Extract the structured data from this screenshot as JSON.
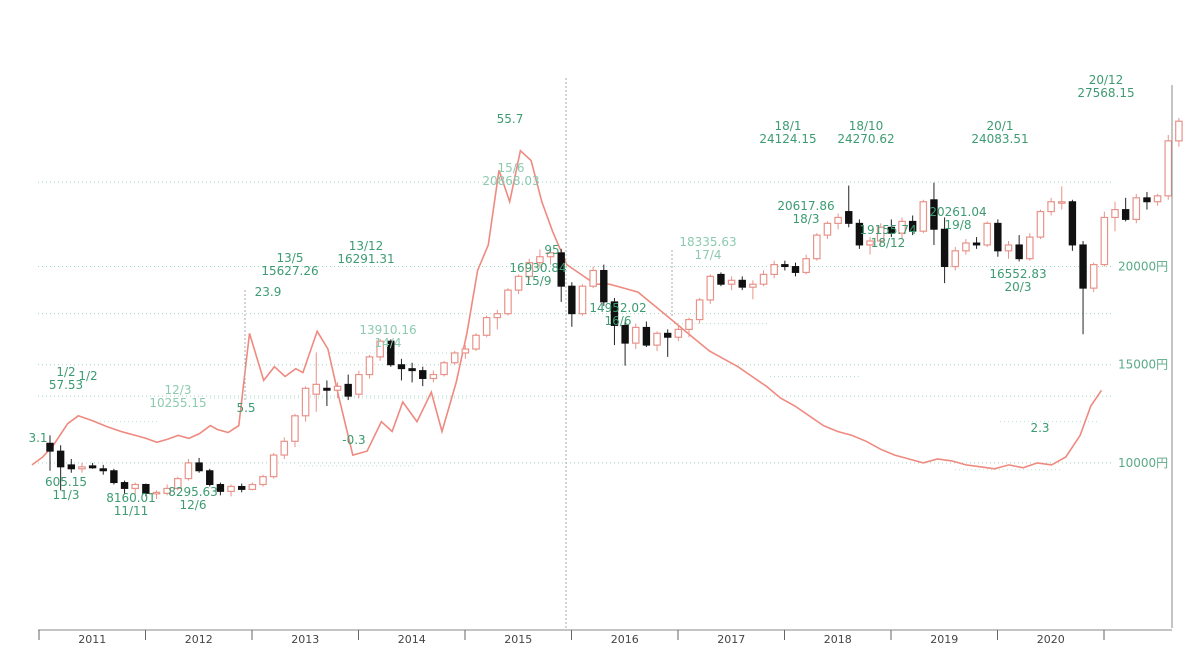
{
  "chart_data": {
    "type": "candlestick",
    "price_axis": {
      "ticks": [
        {
          "value": 10000,
          "label": "10000円"
        },
        {
          "value": 15000,
          "label": "15000円"
        },
        {
          "value": 20000,
          "label": "20000円"
        }
      ],
      "ylim": [
        2000,
        29500
      ]
    },
    "grid": true,
    "years": [
      "2011",
      "2012",
      "2013",
      "2014",
      "2015",
      "2016",
      "2017",
      "2018",
      "2019",
      "2020"
    ],
    "candles": [
      {
        "t": 0.0,
        "o": 11000,
        "h": 11400,
        "l": 9600,
        "c": 10600
      },
      {
        "t": 0.1,
        "o": 10600,
        "h": 10900,
        "l": 8600,
        "c": 9800
      },
      {
        "t": 0.2,
        "o": 9900,
        "h": 10200,
        "l": 9500,
        "c": 9700
      },
      {
        "t": 0.3,
        "o": 9700,
        "h": 10000,
        "l": 9500,
        "c": 9800
      },
      {
        "t": 0.4,
        "o": 9850,
        "h": 10000,
        "l": 9700,
        "c": 9750
      },
      {
        "t": 0.5,
        "o": 9700,
        "h": 9900,
        "l": 9400,
        "c": 9600
      },
      {
        "t": 0.6,
        "o": 9600,
        "h": 9700,
        "l": 8900,
        "c": 9000
      },
      {
        "t": 0.7,
        "o": 9000,
        "h": 9100,
        "l": 8400,
        "c": 8700
      },
      {
        "t": 0.8,
        "o": 8700,
        "h": 9000,
        "l": 8400,
        "c": 8900
      },
      {
        "t": 0.9,
        "o": 8900,
        "h": 8950,
        "l": 8300,
        "c": 8450
      },
      {
        "t": 1.0,
        "o": 8450,
        "h": 8600,
        "l": 8160,
        "c": 8500
      },
      {
        "t": 1.1,
        "o": 8450,
        "h": 8900,
        "l": 8350,
        "c": 8700
      },
      {
        "t": 1.2,
        "o": 8700,
        "h": 9300,
        "l": 8600,
        "c": 9200
      },
      {
        "t": 1.3,
        "o": 9200,
        "h": 10200,
        "l": 9100,
        "c": 10000
      },
      {
        "t": 1.4,
        "o": 10000,
        "h": 10255,
        "l": 9500,
        "c": 9600
      },
      {
        "t": 1.5,
        "o": 9600,
        "h": 9700,
        "l": 8800,
        "c": 8900
      },
      {
        "t": 1.6,
        "o": 8900,
        "h": 9000,
        "l": 8350,
        "c": 8550
      },
      {
        "t": 1.7,
        "o": 8550,
        "h": 8900,
        "l": 8295,
        "c": 8800
      },
      {
        "t": 1.8,
        "o": 8800,
        "h": 8950,
        "l": 8500,
        "c": 8650
      },
      {
        "t": 1.9,
        "o": 8650,
        "h": 9000,
        "l": 8600,
        "c": 8900
      },
      {
        "t": 2.0,
        "o": 8900,
        "h": 9400,
        "l": 8800,
        "c": 9300
      },
      {
        "t": 2.1,
        "o": 9300,
        "h": 10500,
        "l": 9200,
        "c": 10400
      },
      {
        "t": 2.2,
        "o": 10400,
        "h": 11300,
        "l": 10200,
        "c": 11100
      },
      {
        "t": 2.3,
        "o": 11100,
        "h": 12500,
        "l": 10800,
        "c": 12400
      },
      {
        "t": 2.4,
        "o": 12400,
        "h": 13900,
        "l": 12100,
        "c": 13800
      },
      {
        "t": 2.5,
        "o": 13500,
        "h": 15627,
        "l": 12600,
        "c": 14000
      },
      {
        "t": 2.6,
        "o": 13800,
        "h": 14200,
        "l": 12900,
        "c": 13700
      },
      {
        "t": 2.7,
        "o": 13700,
        "h": 14100,
        "l": 13300,
        "c": 13900
      },
      {
        "t": 2.8,
        "o": 14000,
        "h": 14500,
        "l": 13200,
        "c": 13400
      },
      {
        "t": 2.9,
        "o": 13500,
        "h": 14700,
        "l": 13300,
        "c": 14500
      },
      {
        "t": 3.0,
        "o": 14500,
        "h": 15500,
        "l": 14300,
        "c": 15400
      },
      {
        "t": 3.1,
        "o": 15400,
        "h": 16320,
        "l": 15200,
        "c": 16200
      },
      {
        "t": 3.2,
        "o": 16200,
        "h": 16291,
        "l": 14900,
        "c": 15000
      },
      {
        "t": 3.3,
        "o": 15000,
        "h": 15300,
        "l": 14200,
        "c": 14800
      },
      {
        "t": 3.4,
        "o": 14800,
        "h": 15100,
        "l": 14100,
        "c": 14700
      },
      {
        "t": 3.5,
        "o": 14700,
        "h": 14900,
        "l": 13910,
        "c": 14300
      },
      {
        "t": 3.6,
        "o": 14300,
        "h": 14700,
        "l": 14100,
        "c": 14500
      },
      {
        "t": 3.7,
        "o": 14500,
        "h": 15200,
        "l": 14400,
        "c": 15100
      },
      {
        "t": 3.8,
        "o": 15100,
        "h": 15700,
        "l": 15000,
        "c": 15600
      },
      {
        "t": 3.9,
        "o": 15600,
        "h": 16000,
        "l": 15300,
        "c": 15800
      },
      {
        "t": 4.0,
        "o": 15800,
        "h": 16600,
        "l": 15700,
        "c": 16500
      },
      {
        "t": 4.1,
        "o": 16500,
        "h": 17500,
        "l": 16400,
        "c": 17400
      },
      {
        "t": 4.2,
        "o": 17400,
        "h": 17800,
        "l": 16800,
        "c": 17600
      },
      {
        "t": 4.3,
        "o": 17600,
        "h": 18900,
        "l": 17500,
        "c": 18800
      },
      {
        "t": 4.4,
        "o": 18800,
        "h": 19600,
        "l": 18600,
        "c": 19500
      },
      {
        "t": 4.5,
        "o": 19500,
        "h": 20400,
        "l": 19300,
        "c": 20200
      },
      {
        "t": 4.6,
        "o": 20200,
        "h": 20868,
        "l": 19900,
        "c": 20500
      },
      {
        "t": 4.7,
        "o": 20500,
        "h": 20900,
        "l": 20100,
        "c": 20700
      },
      {
        "t": 4.8,
        "o": 20700,
        "h": 20900,
        "l": 18200,
        "c": 19000
      },
      {
        "t": 4.9,
        "o": 19000,
        "h": 19200,
        "l": 16931,
        "c": 17600
      },
      {
        "t": 5.0,
        "o": 17600,
        "h": 19100,
        "l": 17500,
        "c": 19000
      },
      {
        "t": 5.1,
        "o": 19000,
        "h": 20000,
        "l": 18900,
        "c": 19800
      },
      {
        "t": 5.2,
        "o": 19800,
        "h": 20100,
        "l": 18000,
        "c": 18200
      },
      {
        "t": 5.3,
        "o": 18200,
        "h": 18400,
        "l": 16000,
        "c": 17000
      },
      {
        "t": 5.4,
        "o": 17000,
        "h": 17200,
        "l": 14952,
        "c": 16100
      },
      {
        "t": 5.5,
        "o": 16100,
        "h": 17100,
        "l": 15800,
        "c": 16900
      },
      {
        "t": 5.6,
        "o": 16900,
        "h": 17200,
        "l": 15900,
        "c": 16000
      },
      {
        "t": 5.7,
        "o": 16000,
        "h": 16700,
        "l": 15700,
        "c": 16600
      },
      {
        "t": 5.8,
        "o": 16600,
        "h": 16800,
        "l": 15400,
        "c": 16400
      },
      {
        "t": 5.9,
        "o": 16400,
        "h": 17000,
        "l": 16200,
        "c": 16800
      },
      {
        "t": 6.0,
        "o": 16800,
        "h": 17400,
        "l": 16400,
        "c": 17300
      },
      {
        "t": 6.1,
        "o": 17300,
        "h": 18400,
        "l": 17100,
        "c": 18300
      },
      {
        "t": 6.2,
        "o": 18300,
        "h": 19600,
        "l": 18100,
        "c": 19500
      },
      {
        "t": 6.3,
        "o": 19600,
        "h": 19700,
        "l": 19000,
        "c": 19100
      },
      {
        "t": 6.4,
        "o": 19100,
        "h": 19500,
        "l": 18800,
        "c": 19300
      },
      {
        "t": 6.5,
        "o": 19300,
        "h": 19500,
        "l": 18800,
        "c": 18950
      },
      {
        "t": 6.6,
        "o": 18950,
        "h": 19300,
        "l": 18335,
        "c": 19100
      },
      {
        "t": 6.7,
        "o": 19100,
        "h": 19800,
        "l": 19000,
        "c": 19600
      },
      {
        "t": 6.8,
        "o": 19600,
        "h": 20300,
        "l": 19400,
        "c": 20100
      },
      {
        "t": 6.9,
        "o": 20100,
        "h": 20300,
        "l": 19800,
        "c": 20000
      },
      {
        "t": 7.0,
        "o": 20000,
        "h": 20200,
        "l": 19500,
        "c": 19700
      },
      {
        "t": 7.1,
        "o": 19700,
        "h": 20600,
        "l": 19600,
        "c": 20400
      },
      {
        "t": 7.2,
        "o": 20400,
        "h": 21700,
        "l": 20300,
        "c": 21600
      },
      {
        "t": 7.3,
        "o": 21600,
        "h": 22300,
        "l": 21400,
        "c": 22200
      },
      {
        "t": 7.4,
        "o": 22200,
        "h": 22700,
        "l": 21900,
        "c": 22500
      },
      {
        "t": 7.5,
        "o": 22800,
        "h": 24124,
        "l": 22000,
        "c": 22200
      },
      {
        "t": 7.6,
        "o": 22200,
        "h": 22400,
        "l": 20900,
        "c": 21100
      },
      {
        "t": 7.7,
        "o": 21100,
        "h": 21500,
        "l": 20617,
        "c": 21300
      },
      {
        "t": 7.8,
        "o": 21300,
        "h": 22200,
        "l": 21100,
        "c": 22000
      },
      {
        "t": 7.9,
        "o": 22000,
        "h": 22400,
        "l": 21500,
        "c": 21700
      },
      {
        "t": 8.0,
        "o": 21700,
        "h": 22500,
        "l": 21400,
        "c": 22300
      },
      {
        "t": 8.1,
        "o": 22300,
        "h": 22600,
        "l": 21600,
        "c": 21800
      },
      {
        "t": 8.2,
        "o": 21800,
        "h": 23400,
        "l": 21700,
        "c": 23300
      },
      {
        "t": 8.3,
        "o": 23400,
        "h": 24270,
        "l": 21100,
        "c": 21900
      },
      {
        "t": 8.4,
        "o": 21900,
        "h": 22500,
        "l": 19156,
        "c": 20000
      },
      {
        "t": 8.5,
        "o": 20000,
        "h": 21000,
        "l": 19800,
        "c": 20800
      },
      {
        "t": 8.6,
        "o": 20800,
        "h": 21400,
        "l": 20600,
        "c": 21200
      },
      {
        "t": 8.7,
        "o": 21200,
        "h": 21500,
        "l": 20900,
        "c": 21100
      },
      {
        "t": 8.8,
        "o": 21100,
        "h": 22300,
        "l": 21000,
        "c": 22200
      },
      {
        "t": 8.9,
        "o": 22200,
        "h": 22400,
        "l": 20500,
        "c": 20800
      },
      {
        "t": 9.0,
        "o": 20800,
        "h": 21300,
        "l": 20400,
        "c": 21100
      },
      {
        "t": 9.1,
        "o": 21100,
        "h": 21600,
        "l": 20261,
        "c": 20400
      },
      {
        "t": 9.2,
        "o": 20400,
        "h": 21700,
        "l": 20300,
        "c": 21500
      },
      {
        "t": 9.3,
        "o": 21500,
        "h": 22900,
        "l": 21400,
        "c": 22800
      },
      {
        "t": 9.4,
        "o": 22800,
        "h": 23500,
        "l": 22600,
        "c": 23300
      },
      {
        "t": 9.5,
        "o": 23300,
        "h": 24084,
        "l": 22900,
        "c": 23300
      },
      {
        "t": 9.6,
        "o": 23300,
        "h": 23400,
        "l": 20800,
        "c": 21100
      },
      {
        "t": 9.7,
        "o": 21100,
        "h": 21300,
        "l": 16553,
        "c": 18900
      },
      {
        "t": 9.8,
        "o": 18900,
        "h": 20200,
        "l": 18700,
        "c": 20100
      },
      {
        "t": 9.9,
        "o": 20100,
        "h": 22800,
        "l": 20000,
        "c": 22500
      },
      {
        "t": 10.0,
        "o": 22500,
        "h": 23300,
        "l": 21800,
        "c": 22900
      },
      {
        "t": 10.1,
        "o": 22900,
        "h": 23500,
        "l": 22300,
        "c": 22400
      },
      {
        "t": 10.2,
        "o": 22400,
        "h": 23700,
        "l": 22200,
        "c": 23500
      },
      {
        "t": 10.3,
        "o": 23500,
        "h": 23800,
        "l": 22900,
        "c": 23300
      },
      {
        "t": 10.4,
        "o": 23300,
        "h": 23700,
        "l": 23100,
        "c": 23600
      },
      {
        "t": 10.5,
        "o": 23600,
        "h": 26700,
        "l": 23400,
        "c": 26400
      },
      {
        "t": 10.6,
        "o": 26400,
        "h": 27568,
        "l": 26100,
        "c": 27400
      }
    ],
    "line_series": [
      [
        0.0,
        9900
      ],
      [
        0.15,
        10300
      ],
      [
        0.3,
        10900
      ],
      [
        0.5,
        12000
      ],
      [
        0.65,
        12400
      ],
      [
        0.85,
        12150
      ],
      [
        1.05,
        11850
      ],
      [
        1.25,
        11600
      ],
      [
        1.45,
        11400
      ],
      [
        1.6,
        11250
      ],
      [
        1.75,
        11050
      ],
      [
        1.9,
        11200
      ],
      [
        2.05,
        11400
      ],
      [
        2.2,
        11250
      ],
      [
        2.35,
        11500
      ],
      [
        2.5,
        11900
      ],
      [
        2.6,
        11700
      ],
      [
        2.75,
        11550
      ],
      [
        2.9,
        11900
      ],
      [
        3.05,
        16600
      ],
      [
        3.25,
        14200
      ],
      [
        3.4,
        14900
      ],
      [
        3.55,
        14400
      ],
      [
        3.7,
        14800
      ],
      [
        3.8,
        14600
      ],
      [
        4.0,
        16700
      ],
      [
        4.15,
        15800
      ],
      [
        4.3,
        13400
      ],
      [
        4.5,
        10400
      ],
      [
        4.7,
        10600
      ],
      [
        4.9,
        12100
      ],
      [
        5.05,
        11600
      ],
      [
        5.2,
        13100
      ],
      [
        5.4,
        12100
      ],
      [
        5.6,
        13600
      ],
      [
        5.75,
        11600
      ],
      [
        5.95,
        14100
      ],
      [
        6.1,
        16600
      ],
      [
        6.25,
        19800
      ],
      [
        6.4,
        21100
      ],
      [
        6.55,
        24900
      ],
      [
        6.7,
        23300
      ],
      [
        6.85,
        25900
      ],
      [
        7.0,
        25400
      ],
      [
        7.15,
        23300
      ],
      [
        7.3,
        21800
      ],
      [
        7.5,
        20100
      ],
      [
        7.7,
        19600
      ],
      [
        7.9,
        19100
      ],
      [
        8.1,
        19100
      ],
      [
        8.3,
        18900
      ],
      [
        8.5,
        18700
      ],
      [
        8.7,
        18100
      ],
      [
        8.9,
        17500
      ],
      [
        9.1,
        16900
      ],
      [
        9.3,
        16300
      ],
      [
        9.5,
        15700
      ],
      [
        9.7,
        15300
      ],
      [
        9.9,
        14900
      ],
      [
        10.1,
        14400
      ],
      [
        10.3,
        13900
      ],
      [
        10.5,
        13300
      ],
      [
        10.7,
        12900
      ],
      [
        10.9,
        12400
      ],
      [
        11.1,
        11900
      ],
      [
        11.3,
        11600
      ],
      [
        11.5,
        11400
      ],
      [
        11.7,
        11100
      ],
      [
        11.9,
        10700
      ],
      [
        12.1,
        10400
      ],
      [
        12.3,
        10200
      ],
      [
        12.5,
        10000
      ],
      [
        12.7,
        10200
      ],
      [
        12.9,
        10100
      ],
      [
        13.1,
        9900
      ],
      [
        13.3,
        9800
      ],
      [
        13.5,
        9700
      ],
      [
        13.7,
        9900
      ],
      [
        13.9,
        9750
      ],
      [
        14.1,
        10000
      ],
      [
        14.3,
        9900
      ],
      [
        14.5,
        10300
      ],
      [
        14.7,
        11400
      ],
      [
        14.85,
        12900
      ],
      [
        15.0,
        13700
      ]
    ],
    "annotations": [
      {
        "type": "high",
        "date": "1/2",
        "value": "57.53"
      },
      {
        "type": "low",
        "date": "11/3",
        "value": "605.15"
      },
      {
        "type": "low",
        "date": "11/11",
        "value": "8160.01"
      },
      {
        "type": "high",
        "date": "12/3",
        "value": "10255.15"
      },
      {
        "type": "low",
        "date": "12/6",
        "value": "8295.63"
      },
      {
        "type": "high",
        "date": "13/5",
        "value": "15627.26"
      },
      {
        "type": "high",
        "date": "13/12",
        "value": "16291.31"
      },
      {
        "type": "low",
        "date": "14/4",
        "value": "13910.16"
      },
      {
        "type": "high",
        "date": "15/6",
        "value": "20868.03"
      },
      {
        "type": "low",
        "date": "15/9",
        "value": "16930.84"
      },
      {
        "type": "low",
        "date": "16/6",
        "value": "14952.02"
      },
      {
        "type": "low",
        "date": "17/4",
        "value": "18335.63"
      },
      {
        "type": "high",
        "date": "18/1",
        "value": "24124.15"
      },
      {
        "type": "low",
        "date": "18/3",
        "value": "20617.86"
      },
      {
        "type": "high",
        "date": "18/10",
        "value": "24270.62"
      },
      {
        "type": "low",
        "date": "18/12",
        "value": "19155.74"
      },
      {
        "type": "low",
        "date": "19/8",
        "value": "20261.04"
      },
      {
        "type": "high",
        "date": "20/1",
        "value": "24083.51"
      },
      {
        "type": "low",
        "date": "20/3",
        "value": "16552.83"
      },
      {
        "type": "high",
        "date": "20/12",
        "value": "27568.15"
      }
    ],
    "line_labels": [
      "55.7",
      "23.9",
      "5.5",
      "-0.3",
      "2.3",
      "3.1",
      "95",
      "1/2"
    ]
  }
}
